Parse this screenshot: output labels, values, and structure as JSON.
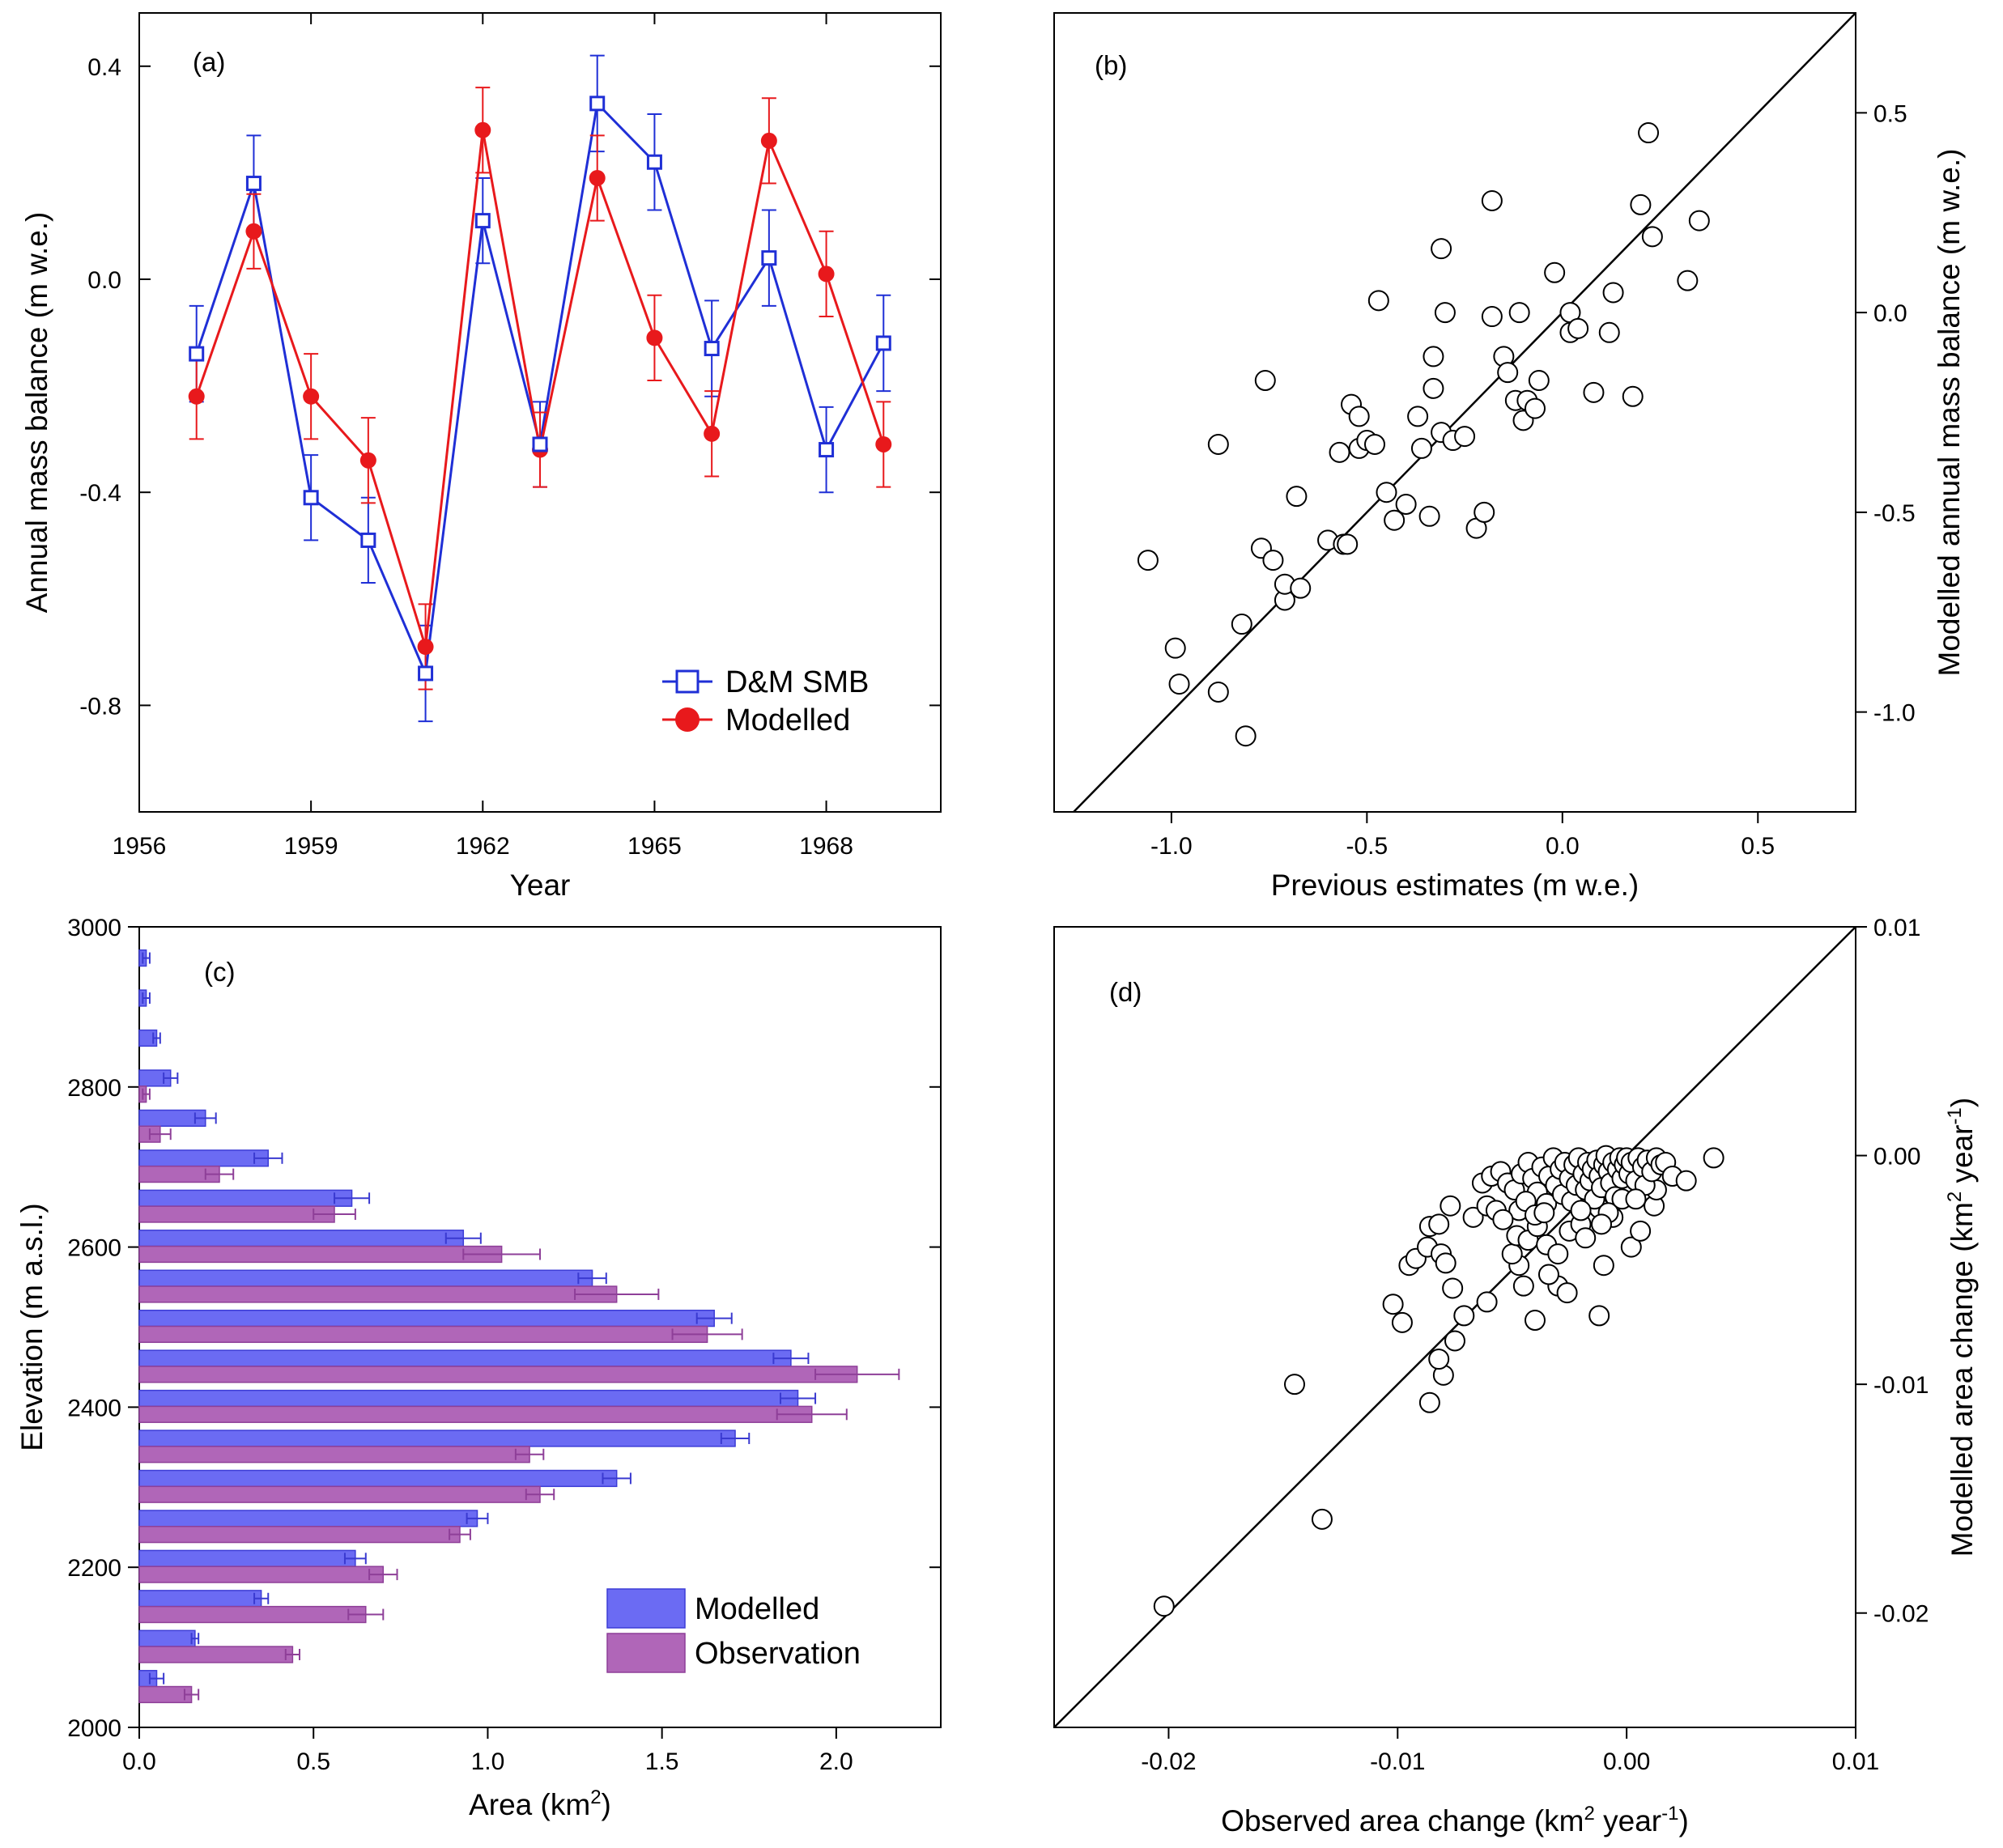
{
  "chart_data": [
    {
      "panel": "(a)",
      "type": "line",
      "xlabel": "Year",
      "ylabel": "Annual mass balance (m w.e.)",
      "xlim": [
        1956,
        1970
      ],
      "ylim": [
        -1.0,
        0.5
      ],
      "xticks": [
        "1956",
        "1959",
        "1962",
        "1965",
        "1968"
      ],
      "yticks": [
        "0.4",
        "0.0",
        "-0.4",
        "-0.8"
      ],
      "x": [
        1957,
        1958,
        1959,
        1960,
        1961,
        1962,
        1963,
        1964,
        1965,
        1966,
        1967,
        1968,
        1969
      ],
      "series": [
        {
          "name": "D&M SMB",
          "color": "#1f2fd6",
          "values": [
            -0.14,
            0.18,
            -0.41,
            -0.49,
            -0.74,
            0.11,
            -0.31,
            0.33,
            0.22,
            -0.13,
            0.04,
            -0.32,
            -0.12
          ],
          "errors": [
            0.09,
            0.09,
            0.08,
            0.08,
            0.09,
            0.08,
            0.08,
            0.09,
            0.09,
            0.09,
            0.09,
            0.08,
            0.09
          ]
        },
        {
          "name": "Modelled",
          "color": "#e8191c",
          "values": [
            -0.22,
            0.09,
            -0.22,
            -0.34,
            -0.69,
            0.28,
            -0.32,
            0.19,
            -0.11,
            -0.29,
            0.26,
            0.01,
            -0.31
          ],
          "errors": [
            0.08,
            0.07,
            0.08,
            0.08,
            0.08,
            0.08,
            0.07,
            0.08,
            0.08,
            0.08,
            0.08,
            0.08,
            0.08
          ]
        }
      ]
    },
    {
      "panel": "(b)",
      "type": "scatter",
      "xlabel": "Previous estimates (m w.e.)",
      "ylabel": "Modelled annual mass balance (m w.e.)",
      "xlim": [
        -1.3,
        0.75
      ],
      "ylim": [
        -1.25,
        0.75
      ],
      "xticks": [
        "-1.0",
        "-0.5",
        "0.0",
        "0.5"
      ],
      "yticks": [
        "0.5",
        "0.0",
        "-0.5",
        "-1.0"
      ],
      "one_to_one_line": true,
      "points": [
        [
          -1.06,
          -0.62
        ],
        [
          -0.99,
          -0.84
        ],
        [
          -0.98,
          -0.93
        ],
        [
          -0.88,
          -0.95
        ],
        [
          -0.88,
          -0.33
        ],
        [
          -0.82,
          -0.78
        ],
        [
          -0.81,
          -1.06
        ],
        [
          -0.77,
          -0.59
        ],
        [
          -0.76,
          -0.17
        ],
        [
          -0.74,
          -0.62
        ],
        [
          -0.71,
          -0.72
        ],
        [
          -0.71,
          -0.68
        ],
        [
          -0.68,
          -0.46
        ],
        [
          -0.67,
          -0.69
        ],
        [
          -0.6,
          -0.57
        ],
        [
          -0.56,
          -0.58
        ],
        [
          -0.57,
          -0.35
        ],
        [
          -0.55,
          -0.58
        ],
        [
          -0.54,
          -0.23
        ],
        [
          -0.52,
          -0.34
        ],
        [
          -0.52,
          -0.26
        ],
        [
          -0.5,
          -0.32
        ],
        [
          -0.48,
          -0.33
        ],
        [
          -0.47,
          0.03
        ],
        [
          -0.45,
          -0.45
        ],
        [
          -0.43,
          -0.52
        ],
        [
          -0.4,
          -0.48
        ],
        [
          -0.37,
          -0.26
        ],
        [
          -0.36,
          -0.34
        ],
        [
          -0.34,
          -0.51
        ],
        [
          -0.33,
          -0.19
        ],
        [
          -0.33,
          -0.11
        ],
        [
          -0.31,
          -0.3
        ],
        [
          -0.31,
          0.16
        ],
        [
          -0.3,
          0.0
        ],
        [
          -0.28,
          -0.32
        ],
        [
          -0.25,
          -0.31
        ],
        [
          -0.22,
          -0.54
        ],
        [
          -0.2,
          -0.5
        ],
        [
          -0.18,
          0.28
        ],
        [
          -0.18,
          -0.01
        ],
        [
          -0.15,
          -0.11
        ],
        [
          -0.14,
          -0.15
        ],
        [
          -0.12,
          -0.22
        ],
        [
          -0.11,
          0.0
        ],
        [
          -0.1,
          -0.27
        ],
        [
          -0.09,
          -0.22
        ],
        [
          -0.07,
          -0.24
        ],
        [
          -0.06,
          -0.17
        ],
        [
          -0.02,
          0.1
        ],
        [
          0.02,
          -0.05
        ],
        [
          0.02,
          0.0
        ],
        [
          0.04,
          -0.04
        ],
        [
          0.08,
          -0.2
        ],
        [
          0.12,
          -0.05
        ],
        [
          0.13,
          0.05
        ],
        [
          0.18,
          -0.21
        ],
        [
          0.2,
          0.27
        ],
        [
          0.22,
          0.45
        ],
        [
          0.23,
          0.19
        ],
        [
          0.32,
          0.08
        ],
        [
          0.35,
          0.23
        ]
      ]
    },
    {
      "panel": "(c)",
      "type": "bar",
      "orientation": "horizontal",
      "xlabel": "Area (km",
      "xlabel_sup": "2",
      "xlabel_end": ")",
      "ylabel": "Elevation (m a.s.l.)",
      "xlim": [
        0,
        2.3
      ],
      "ylim": [
        2000,
        3000
      ],
      "xticks": [
        "0.0",
        "0.5",
        "1.0",
        "1.5",
        "2.0"
      ],
      "yticks": [
        "3000",
        "2800",
        "2600",
        "2400",
        "2200",
        "2000"
      ],
      "bands": [
        2050,
        2100,
        2150,
        2200,
        2250,
        2300,
        2350,
        2400,
        2450,
        2500,
        2550,
        2600,
        2650,
        2700,
        2750,
        2800,
        2850,
        2900,
        2950
      ],
      "series": [
        {
          "name": "Modelled",
          "color": "#6b6bf3",
          "values": [
            0.05,
            0.16,
            0.35,
            0.62,
            0.97,
            1.37,
            1.71,
            1.89,
            1.87,
            1.65,
            1.3,
            0.93,
            0.61,
            0.37,
            0.19,
            0.09,
            0.05,
            0.02,
            0.02
          ],
          "errors": [
            0.02,
            0.01,
            0.02,
            0.03,
            0.03,
            0.04,
            0.04,
            0.05,
            0.05,
            0.05,
            0.04,
            0.05,
            0.05,
            0.04,
            0.03,
            0.02,
            0.01,
            0.01,
            0.01
          ]
        },
        {
          "name": "Observation",
          "color": "#b066b8",
          "values": [
            0.15,
            0.44,
            0.65,
            0.7,
            0.92,
            1.15,
            1.12,
            1.93,
            2.06,
            1.63,
            1.37,
            1.04,
            0.56,
            0.23,
            0.06,
            0.02,
            0.0,
            0.0,
            0.0
          ],
          "errors": [
            0.02,
            0.02,
            0.05,
            0.04,
            0.03,
            0.04,
            0.04,
            0.1,
            0.12,
            0.1,
            0.12,
            0.11,
            0.06,
            0.04,
            0.03,
            0.01,
            0.0,
            0.0,
            0.0
          ]
        }
      ]
    },
    {
      "panel": "(d)",
      "type": "scatter",
      "xlabel": "Observed area change (km",
      "xlabel_sup": "2",
      "xlabel_mid": " year",
      "xlabel_sup2": "-1",
      "xlabel_end": ")",
      "ylabel": "Modelled area change (km",
      "ylabel_sup": "2",
      "ylabel_mid": " year",
      "ylabel_sup2": "-1",
      "ylabel_end": ")",
      "xlim": [
        -0.025,
        0.01
      ],
      "ylim": [
        -0.025,
        0.01
      ],
      "xticks": [
        "-0.02",
        "-0.01",
        "0.00",
        "0.01"
      ],
      "yticks": [
        "0.01",
        "0.00",
        "-0.01",
        "-0.02"
      ],
      "one_to_one_line": true,
      "points": [
        [
          -0.0202,
          -0.0197
        ],
        [
          -0.0133,
          -0.0159
        ],
        [
          -0.0145,
          -0.01
        ],
        [
          -0.0086,
          -0.0108
        ],
        [
          -0.008,
          -0.0096
        ],
        [
          -0.0082,
          -0.0089
        ],
        [
          -0.0075,
          -0.0081
        ],
        [
          -0.0098,
          -0.0073
        ],
        [
          -0.0102,
          -0.0065
        ],
        [
          -0.0061,
          -0.0064
        ],
        [
          -0.0071,
          -0.007
        ],
        [
          -0.004,
          -0.0072
        ],
        [
          -0.0012,
          -0.007
        ],
        [
          -0.003,
          -0.0057
        ],
        [
          -0.0026,
          -0.006
        ],
        [
          -0.0045,
          -0.0057
        ],
        [
          -0.0076,
          -0.0058
        ],
        [
          -0.0095,
          -0.0048
        ],
        [
          -0.0092,
          -0.0045
        ],
        [
          -0.0087,
          -0.004
        ],
        [
          -0.0081,
          -0.0043
        ],
        [
          -0.0079,
          -0.0047
        ],
        [
          -0.0047,
          -0.0048
        ],
        [
          -0.0034,
          -0.0052
        ],
        [
          -0.001,
          -0.0048
        ],
        [
          0.0002,
          -0.004
        ],
        [
          -0.0086,
          -0.0031
        ],
        [
          -0.0082,
          -0.003
        ],
        [
          -0.0077,
          -0.0022
        ],
        [
          -0.0067,
          -0.0027
        ],
        [
          -0.0061,
          -0.0022
        ],
        [
          -0.0057,
          -0.0024
        ],
        [
          -0.005,
          -0.0043
        ],
        [
          -0.0048,
          -0.0035
        ],
        [
          -0.0043,
          -0.0037
        ],
        [
          -0.0039,
          -0.0031
        ],
        [
          -0.0035,
          -0.0039
        ],
        [
          -0.003,
          -0.0043
        ],
        [
          -0.0025,
          -0.0033
        ],
        [
          -0.002,
          -0.003
        ],
        [
          -0.0018,
          -0.0036
        ],
        [
          -0.0012,
          -0.0023
        ],
        [
          -0.0006,
          -0.0027
        ],
        [
          0.0006,
          -0.0033
        ],
        [
          0.0012,
          -0.0022
        ],
        [
          0.0013,
          -0.0015
        ],
        [
          -0.0063,
          -0.0012
        ],
        [
          -0.0059,
          -0.0009
        ],
        [
          -0.0055,
          -0.0007
        ],
        [
          -0.0052,
          -0.0012
        ],
        [
          -0.0049,
          -0.0015
        ],
        [
          -0.0046,
          -0.0008
        ],
        [
          -0.0043,
          -0.0003
        ],
        [
          -0.0041,
          -0.001
        ],
        [
          -0.0039,
          -0.0016
        ],
        [
          -0.0037,
          -0.0005
        ],
        [
          -0.0035,
          -0.0021
        ],
        [
          -0.0034,
          -0.0009
        ],
        [
          -0.0032,
          -0.0001
        ],
        [
          -0.0031,
          -0.0013
        ],
        [
          -0.0029,
          -0.0006
        ],
        [
          -0.0028,
          -0.0017
        ],
        [
          -0.0027,
          -0.0003
        ],
        [
          -0.0025,
          -0.001
        ],
        [
          -0.0024,
          -0.002
        ],
        [
          -0.0023,
          -0.0004
        ],
        [
          -0.0022,
          -0.0013
        ],
        [
          -0.0021,
          -0.0001
        ],
        [
          -0.0019,
          -0.0008
        ],
        [
          -0.0018,
          -0.0015
        ],
        [
          -0.0017,
          -0.0003
        ],
        [
          -0.0016,
          -0.0011
        ],
        [
          -0.0015,
          -0.0006
        ],
        [
          -0.0014,
          -0.0019
        ],
        [
          -0.0013,
          -0.0002
        ],
        [
          -0.0012,
          -0.0009
        ],
        [
          -0.0011,
          -0.0014
        ],
        [
          -0.001,
          -0.0004
        ],
        [
          -0.0009,
          -0.0
        ],
        [
          -0.0008,
          -0.0007
        ],
        [
          -0.0007,
          -0.0012
        ],
        [
          -0.0006,
          -0.0003
        ],
        [
          -0.0005,
          -0.0018
        ],
        [
          -0.0004,
          -0.0006
        ],
        [
          -0.0003,
          -0.0001
        ],
        [
          -0.0002,
          -0.001
        ],
        [
          -0.0001,
          -0.0004
        ],
        [
          0.0,
          -0.0001
        ],
        [
          0.0001,
          -0.0008
        ],
        [
          0.0002,
          -0.0003
        ],
        [
          0.0004,
          -0.0011
        ],
        [
          0.0005,
          -0.0001
        ],
        [
          0.0007,
          -0.0005
        ],
        [
          0.0008,
          -0.0013
        ],
        [
          0.0009,
          -0.0002
        ],
        [
          0.0011,
          -0.0007
        ],
        [
          0.0013,
          -0.0001
        ],
        [
          0.0015,
          -0.0004
        ],
        [
          0.0017,
          -0.0003
        ],
        [
          0.002,
          -0.0009
        ],
        [
          0.0026,
          -0.0011
        ],
        [
          0.0038,
          -0.0001
        ],
        [
          -0.0047,
          -0.0024
        ],
        [
          -0.0044,
          -0.002
        ],
        [
          -0.004,
          -0.0026
        ],
        [
          -0.0036,
          -0.0025
        ],
        [
          -0.002,
          -0.0024
        ],
        [
          -0.0008,
          -0.0025
        ],
        [
          -0.0002,
          -0.0019
        ],
        [
          0.0004,
          -0.0019
        ],
        [
          -0.0054,
          -0.0028
        ],
        [
          -0.0011,
          -0.003
        ]
      ]
    }
  ],
  "legend_a": {
    "dm": "D&M SMB",
    "mod": "Modelled"
  },
  "legend_c": {
    "mod": "Modelled",
    "obs": "Observation"
  }
}
